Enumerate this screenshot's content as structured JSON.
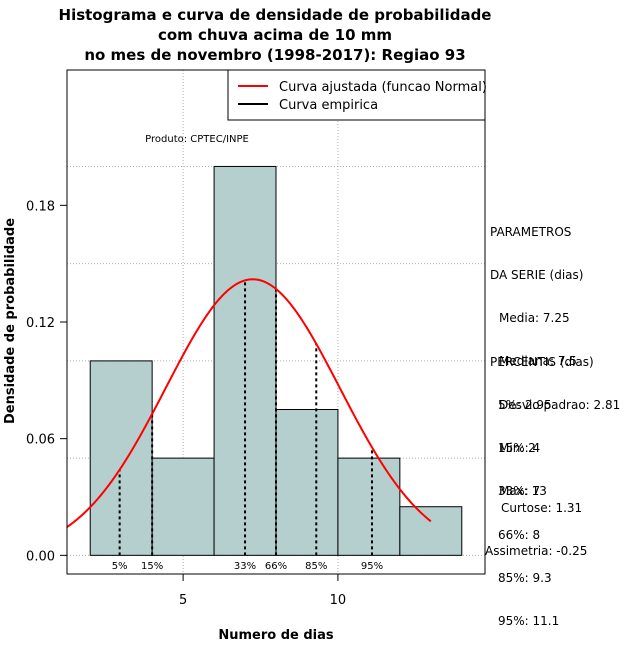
{
  "chart_data": {
    "type": "bar",
    "title": [
      "Histograma e curva de densidade de probabilidade",
      "com chuva acima de 10 mm",
      "no mes de novembro (1998-2017): Regiao 93"
    ],
    "xlabel": "Numero de dias",
    "ylabel": "Densidade de probabilidade",
    "xlim": [
      1.25,
      14.75
    ],
    "ylim": [
      -0.0096,
      0.2496
    ],
    "x_ticks": [
      5,
      10
    ],
    "x_tick_labels": [
      "5",
      "10"
    ],
    "y_ticks": [
      0.0,
      0.06,
      0.12,
      0.18
    ],
    "y_tick_labels": [
      "0.00",
      "0.06",
      "0.12",
      "0.18"
    ],
    "grid": true,
    "bars": [
      {
        "start": 2,
        "end": 4,
        "value": 0.1
      },
      {
        "start": 4,
        "end": 6,
        "value": 0.05
      },
      {
        "start": 6,
        "end": 8,
        "value": 0.2
      },
      {
        "start": 8,
        "end": 10,
        "value": 0.075
      },
      {
        "start": 10,
        "end": 12,
        "value": 0.05
      },
      {
        "start": 12,
        "end": 14,
        "value": 0.025
      }
    ],
    "normal_curve": {
      "mean": 7.25,
      "sd": 2.81,
      "x_from": 1.25,
      "x_to": 13.0
    },
    "percentiles": [
      {
        "label": "5%",
        "x": 2.95
      },
      {
        "label": "15%",
        "x": 4
      },
      {
        "label": "33%",
        "x": 7
      },
      {
        "label": "66%",
        "x": 8
      },
      {
        "label": "85%",
        "x": 9.3
      },
      {
        "label": "95%",
        "x": 11.1
      }
    ],
    "product_label": "Produto: CPTEC/INPE",
    "legend": {
      "position": "top-right",
      "entries": [
        {
          "label": "Curva ajustada (funcao Normal)",
          "color": "#ff0000"
        },
        {
          "label": "Curva empirica",
          "color": "#000000"
        }
      ]
    },
    "colors": {
      "bar_fill": "#b5cfcf",
      "bar_edge": "#000000",
      "grid": "#b0b0b0",
      "curve": "#ff0000"
    }
  },
  "side_panel": {
    "parametros": [
      "PARAMETROS",
      "DA SERIE (dias)",
      "Media: 7.25",
      "Mediana: 7.5",
      "Desvio padrao: 2.81",
      "Min: 2",
      "Max: 13"
    ],
    "percentis": [
      "PERCENTIS (dias)",
      "5%: 2.95",
      "15%: 4",
      "33%: 7",
      "66%: 8",
      "85%: 9.3",
      "95%: 11.1"
    ],
    "forma": [
      "Curtose: 1.31",
      "Assimetria: -0.25"
    ]
  }
}
